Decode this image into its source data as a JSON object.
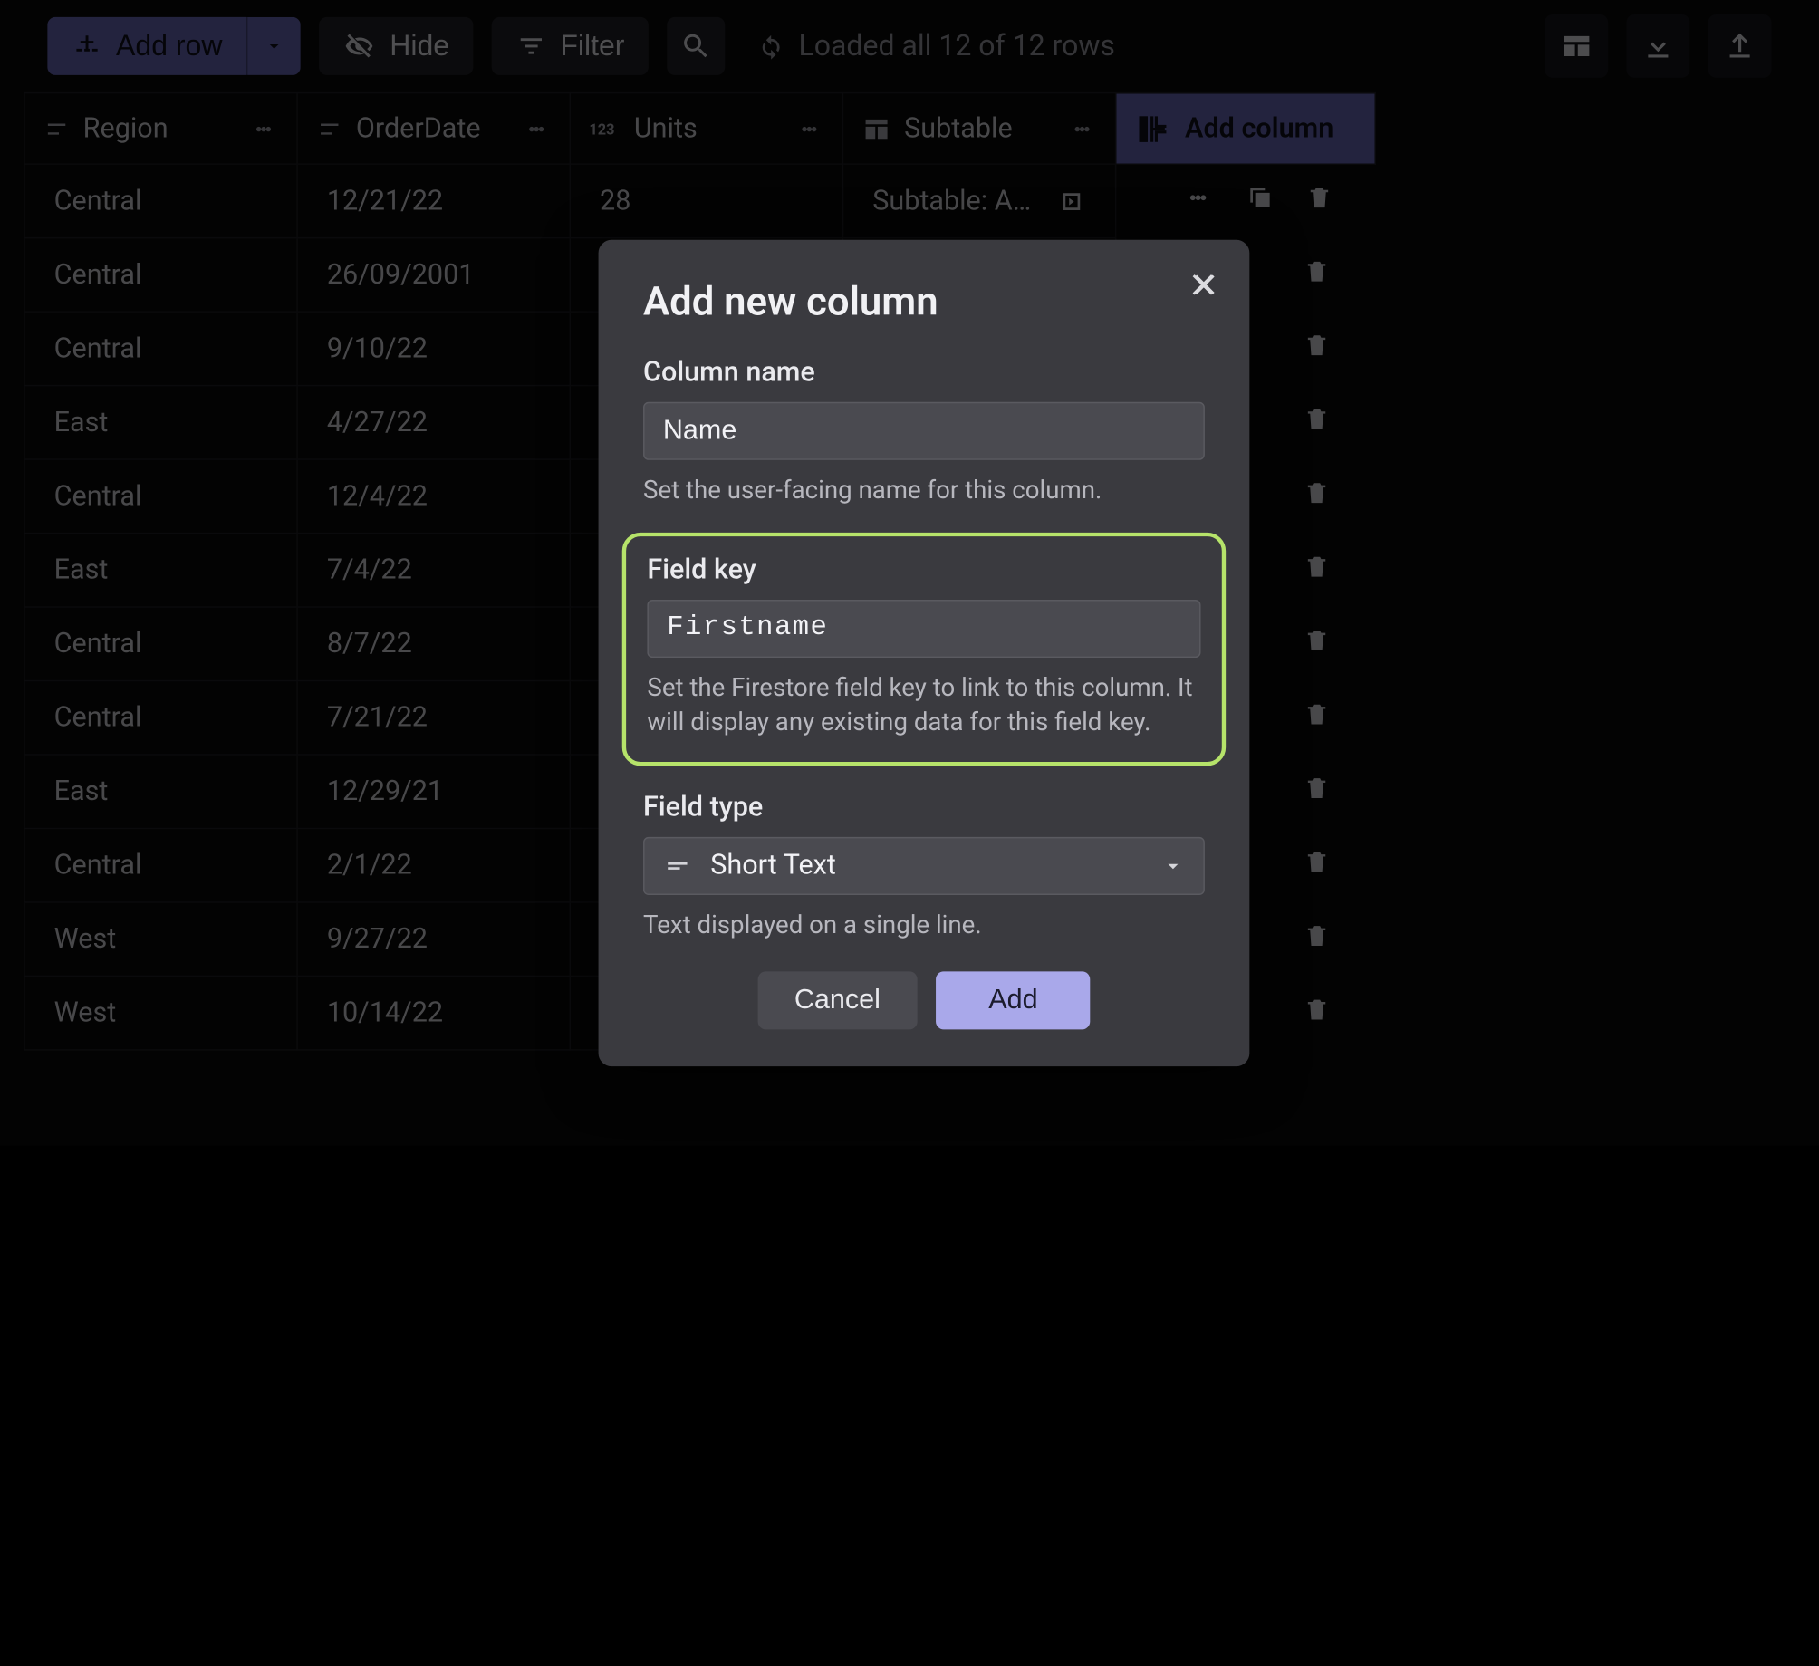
{
  "toolbar": {
    "add_row_label": "Add row",
    "hide_label": "Hide",
    "filter_label": "Filter",
    "loaded_text": "Loaded all 12 of 12 rows"
  },
  "columns": {
    "region": "Region",
    "order_date": "OrderDate",
    "units": "Units",
    "subtable": "Subtable",
    "add_column": "Add column"
  },
  "rows": [
    {
      "region": "Central",
      "date": "12/21/22",
      "units": "28",
      "sub": "Subtable: Andrew"
    },
    {
      "region": "Central",
      "date": "26/09/2001"
    },
    {
      "region": "Central",
      "date": "9/10/22"
    },
    {
      "region": "East",
      "date": "4/27/22"
    },
    {
      "region": "Central",
      "date": "12/4/22"
    },
    {
      "region": "East",
      "date": "7/4/22"
    },
    {
      "region": "Central",
      "date": "8/7/22"
    },
    {
      "region": "Central",
      "date": "7/21/22"
    },
    {
      "region": "East",
      "date": "12/29/21"
    },
    {
      "region": "Central",
      "date": "2/1/22"
    },
    {
      "region": "West",
      "date": "9/27/22"
    },
    {
      "region": "West",
      "date": "10/14/22"
    }
  ],
  "modal": {
    "title": "Add new column",
    "column_name_label": "Column name",
    "column_name_value": "Name",
    "column_name_helper": "Set the user-facing name for this column.",
    "field_key_label": "Field key",
    "field_key_value": "Firstname",
    "field_key_helper": "Set the Firestore field key to link to this column. It will display any existing data for this field key.",
    "field_type_label": "Field type",
    "field_type_value": "Short Text",
    "field_type_helper": "Text displayed on a single line.",
    "cancel_label": "Cancel",
    "add_label": "Add"
  },
  "colors": {
    "accent": "#a9a8ea",
    "accent_dark": "#5e5ea3",
    "highlight_border": "#b6e36a",
    "modal_bg": "#3a3a3f",
    "page_bg": "#0a0a0a",
    "border": "#1c1c20"
  }
}
